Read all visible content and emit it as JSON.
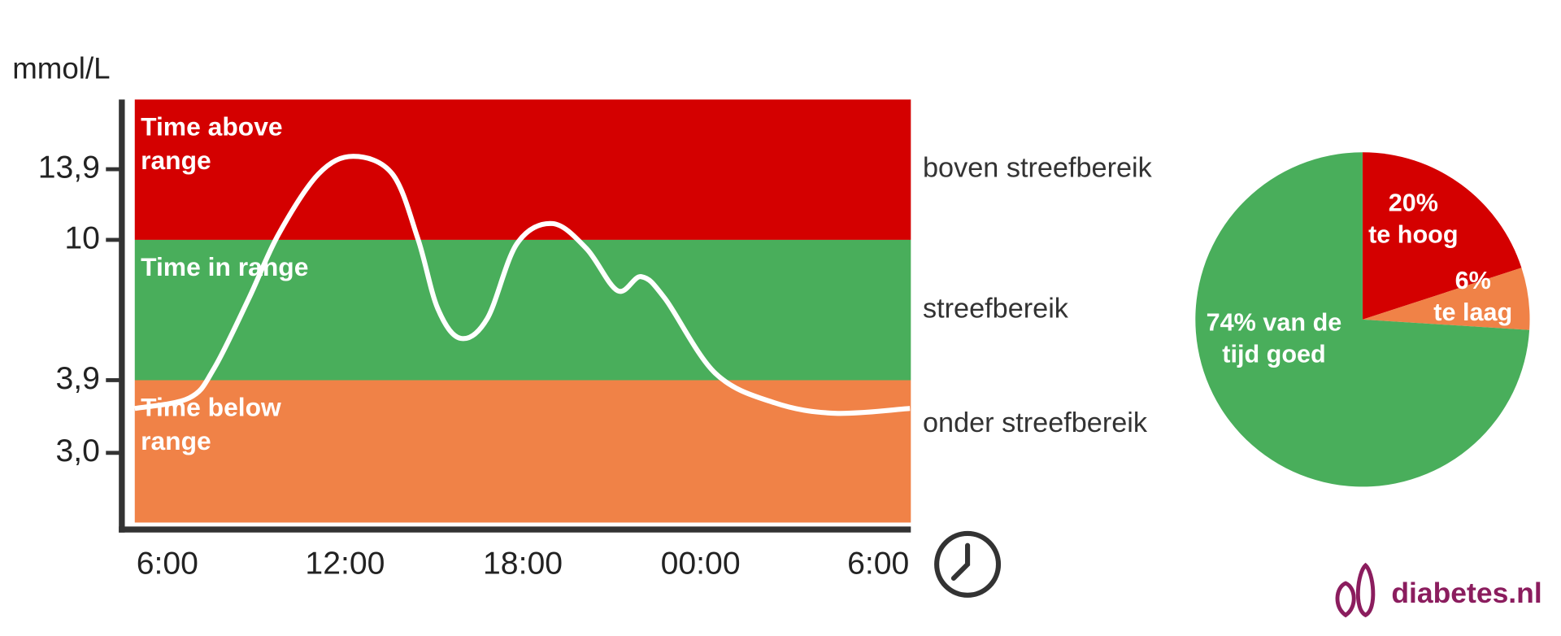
{
  "chart_data": [
    {
      "type": "line",
      "y_label": "mmol/L",
      "x": [
        -1.1,
        0.74,
        1.58,
        2.75,
        3.76,
        5.1,
        6.28,
        7.6,
        8.46,
        9.13,
        9.9,
        10.8,
        11.8,
        13.0,
        14.15,
        15.2,
        16.0,
        16.8,
        18.5,
        20.5,
        22.55,
        25.07
      ],
      "series": [
        {
          "color": "#ffffff",
          "values": [
            3.55,
            3.68,
            4.42,
            7.45,
            10.33,
            13.63,
            14.62,
            13.63,
            10.05,
            7.01,
            5.72,
            6.58,
            9.83,
            10.9,
            9.62,
            7.79,
            8.4,
            7.45,
            4.2,
            3.62,
            3.49,
            3.55
          ]
        }
      ],
      "bands": [
        {
          "name": "Time above range",
          "label": "boven streefbereik",
          "color": "#d40000",
          "from": 10,
          "to": 17.8
        },
        {
          "name": "Time in range",
          "label": "streefbereik",
          "color": "#49ae5b",
          "from": 3.9,
          "to": 10
        },
        {
          "name": "Time below range",
          "label": "onder streefbereik",
          "color": "#f08247",
          "from": 2.1,
          "to": 3.9
        }
      ],
      "xlim": [
        -1.1,
        25.1
      ],
      "xticks": [
        {
          "value": 0,
          "label": "6:00"
        },
        {
          "value": 6,
          "label": "12:00"
        },
        {
          "value": 12,
          "label": "18:00"
        },
        {
          "value": 18,
          "label": "00:00"
        },
        {
          "value": 24,
          "label": "6:00"
        }
      ],
      "ylim": [
        2.1,
        17.8
      ],
      "yticks": [
        {
          "value": 3.0,
          "label": "3,0"
        },
        {
          "value": 3.9,
          "label": "3,9"
        },
        10,
        {
          "value": 13.9,
          "label": "13,9"
        }
      ]
    },
    {
      "type": "pie",
      "categories": [
        "te hoog",
        "te laag",
        "van de tijd goed"
      ],
      "values": [
        20,
        6,
        74
      ],
      "value_labels": [
        "20%",
        "6%",
        "74%"
      ],
      "colors": [
        "#d40000",
        "#f08247",
        "#49ae5b"
      ]
    }
  ],
  "logo": "diabetes.nl"
}
